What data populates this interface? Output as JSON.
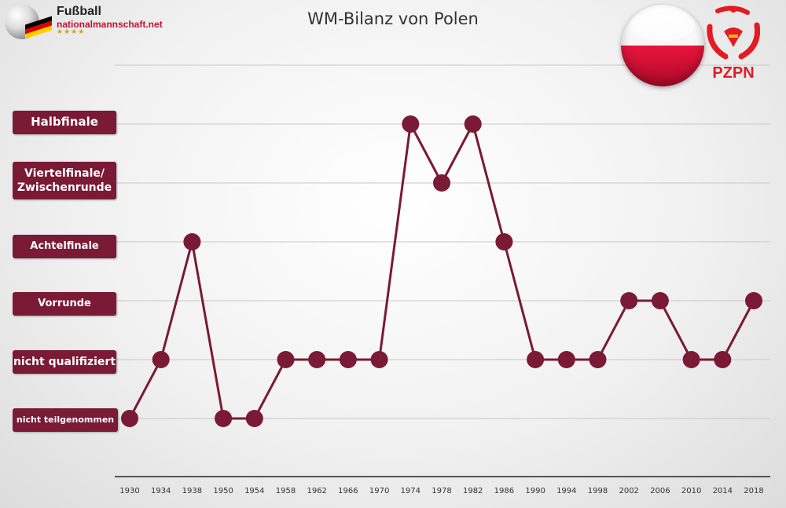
{
  "header": {
    "logo_line1": "Fußball",
    "logo_line2": "nationalmannschaft.net",
    "logo_stars": "★★★★",
    "federation": "PZPN"
  },
  "chart_data": {
    "type": "line",
    "title": "WM-Bilanz von Polen",
    "xlabel": "",
    "ylabel": "",
    "categories": [
      "nicht teilgenommen",
      "nicht qualifiziert",
      "Vorrunde",
      "Achtelfinale",
      "Viertelfinale/ Zwischenrunde",
      "Halbfinale"
    ],
    "x": [
      1930,
      1934,
      1938,
      1950,
      1954,
      1958,
      1962,
      1966,
      1970,
      1974,
      1978,
      1982,
      1986,
      1990,
      1994,
      1998,
      2002,
      2006,
      2010,
      2014,
      2018
    ],
    "series": [
      {
        "values": [
          "nicht teilgenommen",
          "nicht qualifiziert",
          "Achtelfinale",
          "nicht teilgenommen",
          "nicht teilgenommen",
          "nicht qualifiziert",
          "nicht qualifiziert",
          "nicht qualifiziert",
          "nicht qualifiziert",
          "Halbfinale",
          "Viertelfinale/ Zwischenrunde",
          "Halbfinale",
          "Achtelfinale",
          "nicht qualifiziert",
          "nicht qualifiziert",
          "nicht qualifiziert",
          "Vorrunde",
          "Vorrunde",
          "nicht qualifiziert",
          "nicht qualifiziert",
          "Vorrunde"
        ]
      }
    ],
    "grid": true,
    "legend": "none",
    "color": "#7a1a34"
  }
}
